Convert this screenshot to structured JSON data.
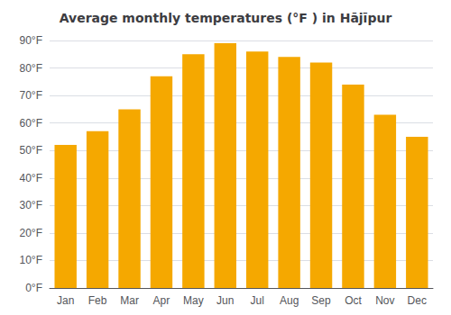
{
  "chart_data": {
    "type": "bar",
    "title": "Average monthly temperatures (°F ) in Hājīpur",
    "categories": [
      "Jan",
      "Feb",
      "Mar",
      "Apr",
      "May",
      "Jun",
      "Jul",
      "Aug",
      "Sep",
      "Oct",
      "Nov",
      "Dec"
    ],
    "values": [
      52,
      57,
      65,
      77,
      85,
      89,
      86,
      84,
      82,
      74,
      63,
      55
    ],
    "color": "#F5A800",
    "ylim": [
      0,
      90
    ],
    "yticks": [
      {
        "value": 0,
        "label": "0°F"
      },
      {
        "value": 10,
        "label": "10°F"
      },
      {
        "value": 20,
        "label": "20°F"
      },
      {
        "value": 30,
        "label": "30°F"
      },
      {
        "value": 40,
        "label": "40°F"
      },
      {
        "value": 50,
        "label": "50°F"
      },
      {
        "value": 60,
        "label": "60°F"
      },
      {
        "value": 70,
        "label": "70°F"
      },
      {
        "value": 80,
        "label": "80°F"
      },
      {
        "value": 90,
        "label": "90°F"
      }
    ],
    "grid": true
  }
}
